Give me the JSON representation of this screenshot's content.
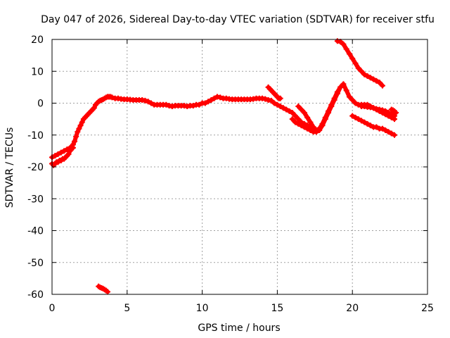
{
  "chart_data": {
    "type": "scatter",
    "title": "Day 047 of 2026, Sidereal Day-to-day VTEC variation (SDTVAR) for receiver stfu",
    "xlabel": "GPS time / hours",
    "ylabel": "SDTVAR / TECUs",
    "xlim": [
      0,
      25
    ],
    "ylim": [
      -60,
      20
    ],
    "xticks": [
      0,
      5,
      10,
      15,
      20,
      25
    ],
    "yticks": [
      -60,
      -50,
      -40,
      -30,
      -20,
      -10,
      0,
      10,
      20
    ],
    "xtick_labels": [
      "0",
      "5",
      "10",
      "15",
      "20",
      "25"
    ],
    "ytick_labels": [
      "-60",
      "-50",
      "-40",
      "-30",
      "-20",
      "-10",
      "0",
      "10",
      "20"
    ],
    "grid": true,
    "marker_color": "#ff0000",
    "series": [
      {
        "name": "main",
        "x": [
          0.0,
          0.1,
          0.2,
          0.3,
          0.4,
          0.5,
          0.6,
          0.7,
          0.8,
          0.9,
          1.0,
          1.1,
          1.2,
          1.3,
          1.4,
          1.5,
          1.6,
          1.7,
          1.8,
          1.9,
          2.0,
          2.1,
          2.2,
          2.3,
          2.4,
          2.5,
          2.6,
          2.7,
          2.8,
          2.9,
          3.0,
          3.1,
          3.2,
          3.3,
          3.4,
          3.5,
          3.6,
          3.7,
          3.8,
          3.9,
          4.0,
          4.2,
          4.4,
          4.6,
          4.8,
          5.0,
          5.2,
          5.4,
          5.6,
          5.8,
          6.0,
          6.2,
          6.4,
          6.6,
          6.8,
          7.0,
          7.2,
          7.4,
          7.6,
          7.8,
          8.0,
          8.2,
          8.4,
          8.6,
          8.8,
          9.0,
          9.2,
          9.4,
          9.6,
          9.8,
          10.0,
          10.2,
          10.4,
          10.6,
          10.8,
          11.0,
          11.2,
          11.4,
          11.6,
          11.8,
          12.0,
          12.2,
          12.4,
          12.6,
          12.8,
          13.0,
          13.2,
          13.4,
          13.6,
          13.8,
          14.0,
          14.2,
          14.4,
          14.6,
          14.8,
          15.0,
          15.2,
          15.4,
          15.6,
          15.8,
          16.0,
          16.2,
          16.4,
          16.6,
          16.8,
          17.0,
          17.2,
          17.4,
          17.6
        ],
        "y": [
          -19,
          -19.5,
          -19,
          -18.5,
          -18.5,
          -18,
          -18,
          -17.5,
          -17.5,
          -17,
          -16.5,
          -16,
          -15,
          -14,
          -13,
          -12,
          -10.5,
          -9,
          -8,
          -7,
          -6,
          -5,
          -4.5,
          -4,
          -3.5,
          -3,
          -2.5,
          -2,
          -1.5,
          -0.5,
          0,
          0.5,
          0.8,
          1,
          1.2,
          1.5,
          1.8,
          2,
          2,
          2,
          1.8,
          1.5,
          1.5,
          1.3,
          1.2,
          1.2,
          1.1,
          1,
          1,
          1,
          1,
          0.8,
          0.5,
          0,
          -0.5,
          -0.5,
          -0.5,
          -0.5,
          -0.5,
          -0.8,
          -1,
          -0.8,
          -0.8,
          -0.8,
          -0.8,
          -1,
          -0.8,
          -0.8,
          -0.5,
          -0.5,
          0,
          0,
          0.5,
          1,
          1.5,
          2,
          1.8,
          1.5,
          1.5,
          1.3,
          1.2,
          1.2,
          1.2,
          1.2,
          1.2,
          1.2,
          1.2,
          1.3,
          1.5,
          1.5,
          1.5,
          1.3,
          1,
          0.8,
          0,
          -0.5,
          -1,
          -1.5,
          -2,
          -2.5,
          -3,
          -4,
          -5,
          -6,
          -6.5,
          -7,
          -7.5,
          -8,
          -8.5
        ]
      },
      {
        "name": "band-low",
        "x": [
          0.0,
          0.2,
          0.4,
          0.6,
          0.8,
          1.0,
          1.2,
          1.4
        ],
        "y": [
          -17,
          -16.5,
          -16,
          -15.5,
          -15,
          -14.5,
          -14,
          -14
        ]
      },
      {
        "name": "dip-left",
        "x": [
          3.1,
          3.2,
          3.3,
          3.4,
          3.5,
          3.6,
          3.7
        ],
        "y": [
          -57.5,
          -57.8,
          -58,
          -58.2,
          -58.5,
          -58.8,
          -59.2
        ]
      },
      {
        "name": "seg-14-15",
        "x": [
          14.4,
          14.5,
          14.6,
          14.7,
          14.8,
          14.9,
          15.0,
          15.1,
          15.2
        ],
        "y": [
          5,
          4.5,
          4,
          3.5,
          3,
          2.5,
          2,
          1.5,
          1.5
        ]
      },
      {
        "name": "seg-16-18",
        "x": [
          16.0,
          16.2,
          16.4,
          16.6,
          16.8,
          17.0,
          17.2,
          17.4,
          17.6,
          17.8,
          18.0,
          18.2,
          18.4,
          18.6,
          18.8,
          19.0,
          19.2,
          19.4,
          19.6,
          19.8,
          20.0,
          20.2,
          20.4,
          20.6,
          20.8,
          21.0,
          21.2,
          21.4,
          21.6,
          21.8,
          22.0,
          22.2,
          22.4,
          22.6,
          22.8
        ],
        "y": [
          -5,
          -6,
          -6.5,
          -7,
          -7.5,
          -8,
          -8.5,
          -9,
          -9,
          -8.5,
          -7,
          -5,
          -3,
          -1,
          1,
          3,
          5,
          6,
          4,
          2,
          1,
          0,
          -0.5,
          -0.5,
          -0.5,
          -0.5,
          -1,
          -1.5,
          -2,
          -2.5,
          -3,
          -3.5,
          -4,
          -4.5,
          -5
        ]
      },
      {
        "name": "arc-16-18",
        "x": [
          16.4,
          16.6,
          16.8,
          17.0,
          17.2,
          17.4,
          17.6,
          17.8,
          18.0,
          18.2,
          18.4,
          18.6,
          18.8,
          19.0,
          19.2
        ],
        "y": [
          -1,
          -2,
          -3,
          -4.5,
          -6,
          -7.5,
          -8.5,
          -8,
          -6.5,
          -4.5,
          -2.5,
          -0.5,
          1.5,
          3.5,
          5
        ]
      },
      {
        "name": "high-19-22",
        "x": [
          19.0,
          19.2,
          19.4,
          19.6,
          19.8,
          20.0,
          20.2,
          20.4,
          20.6,
          20.8,
          21.0,
          21.2,
          21.4,
          21.6,
          21.8,
          22.0
        ],
        "y": [
          19.5,
          19.3,
          18.5,
          17,
          15.5,
          14,
          12.5,
          11,
          10,
          9,
          8.5,
          8,
          7.5,
          7,
          6.5,
          5.5
        ]
      },
      {
        "name": "low-20-23",
        "x": [
          20.0,
          20.2,
          20.4,
          20.6,
          20.8,
          21.0,
          21.2,
          21.4,
          21.6,
          21.8,
          22.0,
          22.2,
          22.4,
          22.6,
          22.8
        ],
        "y": [
          -4,
          -4.5,
          -5,
          -5.5,
          -6,
          -6.5,
          -7,
          -7.5,
          -7.5,
          -8,
          -8,
          -8.5,
          -9,
          -9.5,
          -10
        ]
      },
      {
        "name": "mid-21-23",
        "x": [
          20.6,
          20.8,
          21.0,
          21.2,
          21.4,
          21.6,
          21.8,
          22.0,
          22.2,
          22.4,
          22.6,
          22.8
        ],
        "y": [
          -1,
          -1,
          -1.2,
          -1.3,
          -1.5,
          -1.8,
          -2,
          -2.2,
          -2.5,
          -3,
          -3.5,
          -4
        ]
      },
      {
        "name": "tail-22-23",
        "x": [
          22.6,
          22.7,
          22.8,
          22.9
        ],
        "y": [
          -2,
          -2.2,
          -2.5,
          -3
        ]
      }
    ]
  }
}
